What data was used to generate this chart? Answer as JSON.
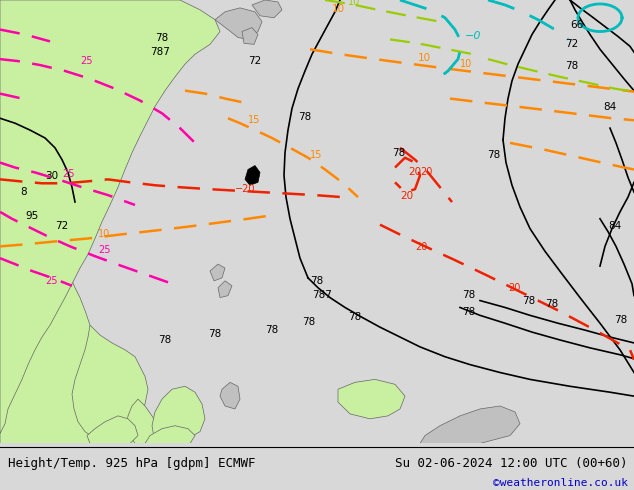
{
  "title_left": "Height/Temp. 925 hPa [gdpm] ECMWF",
  "title_right": "Su 02-06-2024 12:00 UTC (00+60)",
  "copyright": "©weatheronline.co.uk",
  "bg_color": "#d8d8d8",
  "land_green": "#c8f0a0",
  "land_gray": "#c0c0c0",
  "sea_color": "#d8d8d8",
  "text_color": "#000000",
  "copyright_color": "#0000cc",
  "fig_width": 6.34,
  "fig_height": 4.9,
  "dpi": 100,
  "title_fontsize": 9.0,
  "copyright_fontsize": 8.0
}
